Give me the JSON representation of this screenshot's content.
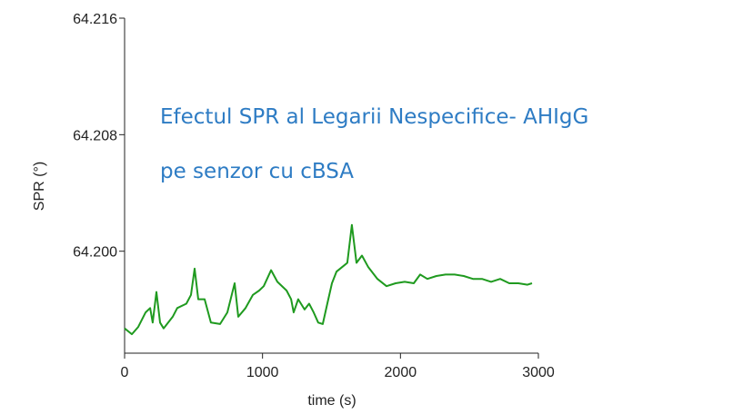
{
  "chart_data": {
    "type": "line",
    "annotation": [
      "Efectul SPR al Legarii Nespecifice- AHIgG",
      "pe senzor cu cBSA"
    ],
    "xlabel": "time (s)",
    "ylabel": "SPR (°)",
    "x": [
      0,
      53,
      99,
      152,
      185,
      204,
      231,
      257,
      283,
      349,
      382,
      448,
      481,
      508,
      534,
      580,
      626,
      692,
      745,
      798,
      824,
      877,
      930,
      976,
      1009,
      1062,
      1108,
      1174,
      1207,
      1226,
      1259,
      1305,
      1338,
      1371,
      1404,
      1437,
      1470,
      1503,
      1536,
      1576,
      1615,
      1648,
      1681,
      1721,
      1767,
      1833,
      1899,
      1965,
      2031,
      2097,
      2143,
      2195,
      2261,
      2327,
      2393,
      2459,
      2525,
      2591,
      2657,
      2723,
      2789,
      2855,
      2921,
      2954
    ],
    "values": [
      64.1947,
      64.1943,
      64.1948,
      64.1958,
      64.1961,
      64.1951,
      64.1972,
      64.1951,
      64.1947,
      64.1955,
      64.1961,
      64.1964,
      64.197,
      64.1988,
      64.1967,
      64.1967,
      64.1951,
      64.195,
      64.1958,
      64.1978,
      64.1955,
      64.1961,
      64.197,
      64.1973,
      64.1976,
      64.1987,
      64.1979,
      64.1973,
      64.1967,
      64.1958,
      64.1967,
      64.196,
      64.1964,
      64.1958,
      64.1951,
      64.195,
      64.1964,
      64.1978,
      64.1986,
      64.1989,
      64.1992,
      64.2018,
      64.1992,
      64.1997,
      64.1989,
      64.1981,
      64.1976,
      64.1978,
      64.1979,
      64.1978,
      64.1984,
      64.1981,
      64.1983,
      64.1984,
      64.1984,
      64.1983,
      64.1981,
      64.1981,
      64.1979,
      64.1981,
      64.1978,
      64.1978,
      64.1977,
      64.1978
    ],
    "color": "#1f9a1f",
    "xlim": [
      0,
      3000
    ],
    "xticks": [
      0,
      1000,
      2000,
      3000
    ],
    "ylim": [
      64.193,
      64.216
    ],
    "yticks": [
      64.216,
      64.208,
      {
        "value": 64.2,
        "label": "64.200"
      }
    ]
  }
}
